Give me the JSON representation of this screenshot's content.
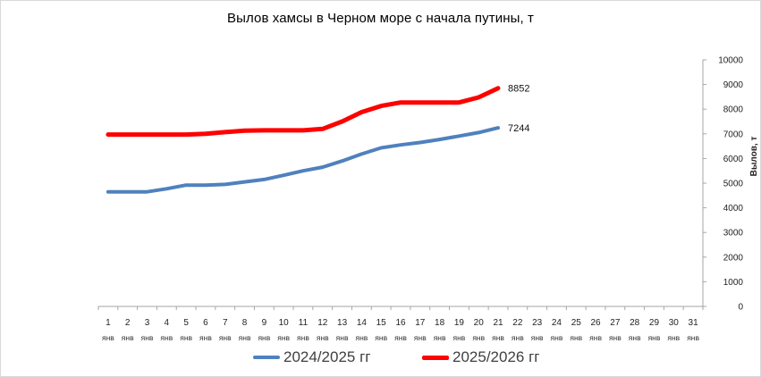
{
  "chart_data": {
    "type": "line",
    "title": "Вылов хамсы в Черном море с начала путины, т",
    "ylabel": "Вылов, т",
    "xlabel": "",
    "y_axis_position": "right",
    "ylim": [
      0,
      10000
    ],
    "yticks": [
      0,
      1000,
      2000,
      3000,
      4000,
      5000,
      6000,
      7000,
      8000,
      9000,
      10000
    ],
    "x_days": [
      1,
      2,
      3,
      4,
      5,
      6,
      7,
      8,
      9,
      10,
      11,
      12,
      13,
      14,
      15,
      16,
      17,
      18,
      19,
      20,
      21,
      22,
      23,
      24,
      25,
      26,
      27,
      28,
      29,
      30,
      31
    ],
    "x_month": "янв",
    "legend_position": "bottom",
    "series": [
      {
        "name": "2024/2025 гг",
        "color": "#4f81bd",
        "values": [
          4650,
          4650,
          4650,
          4770,
          4920,
          4920,
          4950,
          5050,
          5150,
          5320,
          5500,
          5650,
          5900,
          6180,
          6430,
          6550,
          6650,
          6770,
          6910,
          7050,
          7244
        ],
        "end_label": "7244"
      },
      {
        "name": "2025/2026 гг",
        "color": "#ff0000",
        "values": [
          6970,
          6970,
          6970,
          6970,
          6970,
          7000,
          7070,
          7130,
          7140,
          7140,
          7140,
          7200,
          7500,
          7880,
          8130,
          8270,
          8270,
          8270,
          8270,
          8480,
          8852
        ],
        "end_label": "8852"
      }
    ]
  }
}
